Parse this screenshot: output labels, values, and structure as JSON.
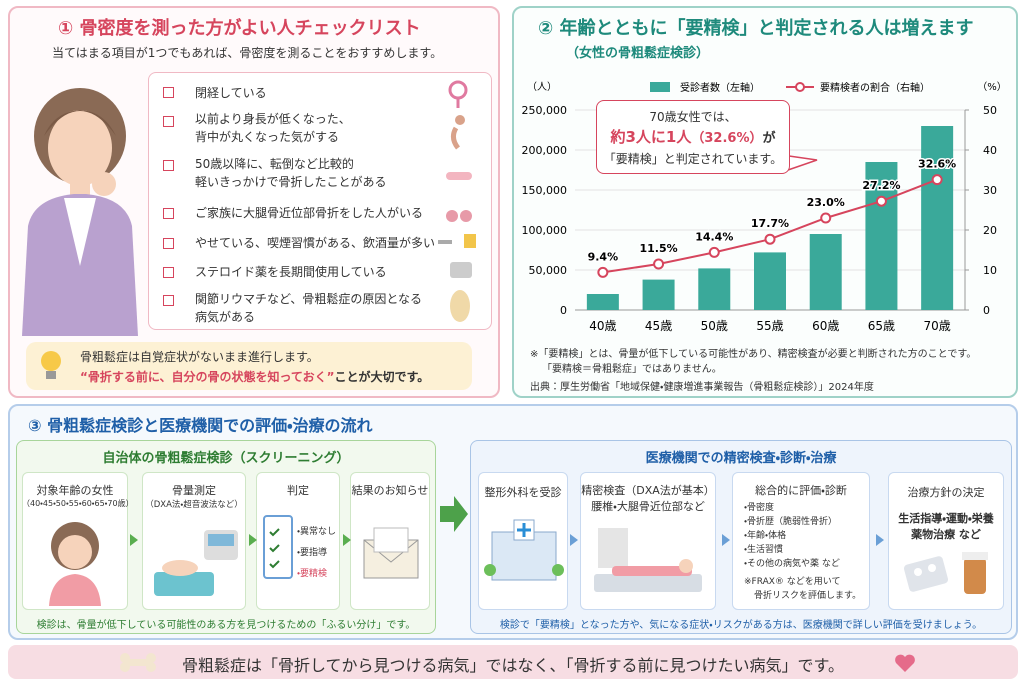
{
  "checklist": {
    "title": "① 骨密度を測った方がよい人チェックリスト",
    "intro": "当てはまる項目が1つでもあれば、骨密度を測ることをおすすめします。",
    "items": [
      [
        "閉経している"
      ],
      [
        "以前より身長が低くなった、",
        "背中が丸くなった気がする"
      ],
      [
        "50歳以降に、転倒など比較的",
        "軽いきっかけで骨折したことがある"
      ],
      [
        "ご家族に大腿骨近位部骨折をした人がいる"
      ],
      [
        "やせている、喫煙習慣がある、飲酒量が多い"
      ],
      [
        "ステロイド薬を長期間使用している"
      ],
      [
        "関節リウマチなど、骨粗鬆症の原因となる",
        "病気がある"
      ]
    ],
    "note": {
      "line1": "骨粗鬆症は自覚症状がないまま進行します。",
      "emphasis": "“骨折する前に、自分の骨の状態を知っておく”",
      "rest": "ことが大切です。"
    }
  },
  "chart_data": {
    "type": "bar",
    "title": "② 年齢とともに「要精検」と判定される人は増えます",
    "subtitle": "（女性の骨粗鬆症検診）",
    "categories": [
      "40歳",
      "45歳",
      "50歳",
      "55歳",
      "60歳",
      "65歳",
      "70歳"
    ],
    "y_label": "（人）",
    "y2_label": "（%）",
    "series": [
      {
        "name": "受診者数（左軸）",
        "color": "#3aa99a",
        "values": [
          20000,
          38000,
          52000,
          72000,
          95000,
          185000,
          230000
        ]
      },
      {
        "name": "要精検者の割合（右軸）",
        "color": "#d6455d",
        "type": "line",
        "axis": "y2",
        "values": [
          9.4,
          11.5,
          14.4,
          17.7,
          23.0,
          27.2,
          32.6
        ],
        "value_labels": [
          "9.4%",
          "11.5%",
          "14.4%",
          "17.7%",
          "23.0%",
          "27.2%",
          "32.6%"
        ]
      }
    ],
    "ylim": [
      0,
      250000
    ],
    "yticks": [
      0,
      {
        "value": 50000,
        "label": "50,000"
      },
      {
        "value": 100000,
        "label": "100,000"
      },
      {
        "value": 150000,
        "label": "150,000"
      },
      {
        "value": 200000,
        "label": "200,000"
      },
      {
        "value": 250000,
        "label": "250,000"
      }
    ],
    "y2lim": [
      0,
      50
    ],
    "y2ticks": [
      0,
      10,
      20,
      30,
      40,
      50
    ],
    "annotation": {
      "line1": "70歳女性では、",
      "emphasis": "約3人に1人",
      "percent": "（32.6%）",
      "tail": "が",
      "line3": "「要精検」と判定されています。"
    },
    "notes": [
      "※「要精検」とは、骨量が低下している可能性があり、精密検査が必要と判断された方のことです。",
      "「要精検＝骨粗鬆症」ではありません。"
    ],
    "source": "出典：厚生労働省「地域保健・健康増進事業報告（骨粗鬆症検診）」2024年度"
  },
  "flow": {
    "title": "③ 骨粗鬆症検診と医療機関での評価・治療の流れ",
    "screening": {
      "title": "自治体の骨粗鬆症検診（スクリーニング）",
      "steps": [
        {
          "title": "対象年齢の女性",
          "sub": "（40・45・50・55・60・65・70歳）"
        },
        {
          "title": "骨量測定",
          "sub": "（DXA法・超音波法など）"
        },
        {
          "title": "判定",
          "items": [
            "・異常なし",
            "・要指導",
            "・要精検"
          ]
        },
        {
          "title": "結果のお知らせ"
        }
      ],
      "note": "検診は、骨量が低下している可能性のある方を見つけるための「ふるい分け」です。"
    },
    "medical": {
      "title": "医療機関での精密検査・診断・治療",
      "steps": [
        {
          "title": "整形外科を受診"
        },
        {
          "title": "精密検査（DXA法が基本）",
          "sub": "腰椎・大腿骨近位部など"
        },
        {
          "title": "総合的に評価・診断",
          "items": [
            "・骨密度",
            "・骨折歴（脆弱性骨折）",
            "・年齢・体格",
            "・生活習慣",
            "・その他の病気や薬 など"
          ],
          "sub": [
            "※FRAX® などを用いて",
            "骨折リスクを評価します。"
          ]
        },
        {
          "title": "治療方針の決定",
          "sub": [
            "生活指導・運動・栄養",
            "薬物治療 など"
          ]
        }
      ],
      "note": "検診で「要精検」となった方や、気になる症状・リスクがある方は、医療機関で詳しい評価を受けましょう。"
    }
  },
  "banner": "骨粗鬆症は「骨折してから見つける病気」ではなく、「骨折する前に見つけたい病気」です。"
}
